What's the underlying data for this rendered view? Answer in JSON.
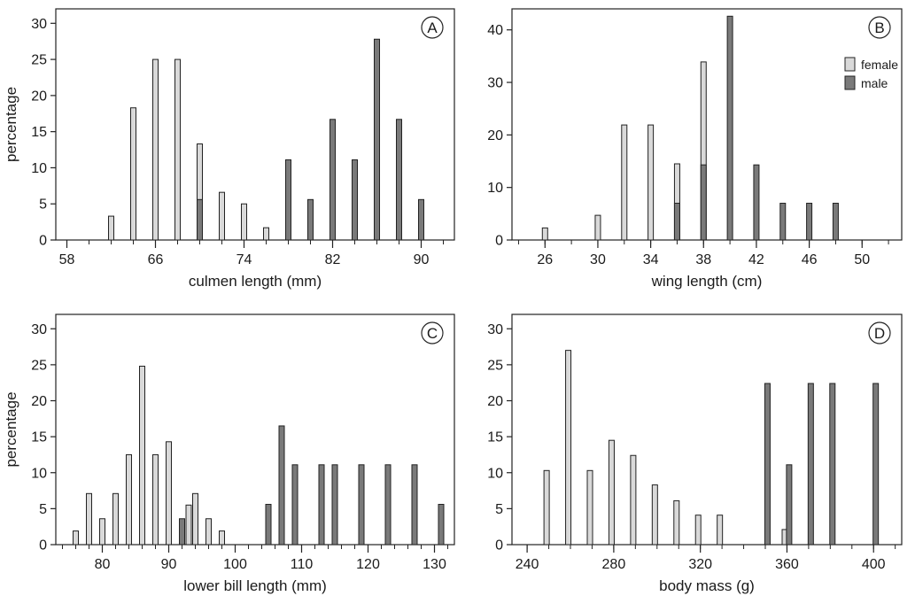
{
  "colors": {
    "female": "#d9d9d9",
    "male": "#7a7a7a",
    "stroke": "#222222"
  },
  "legend": {
    "entries": [
      {
        "label": "female",
        "series": "female"
      },
      {
        "label": "male",
        "series": "male"
      }
    ]
  },
  "chart_data": [
    {
      "type": "bar",
      "panel": "A",
      "xlabel": "culmen length (mm)",
      "ylabel": "percentage",
      "xlim": [
        57,
        93
      ],
      "ylim": [
        0,
        32
      ],
      "xticks": [
        58,
        66,
        74,
        82,
        90
      ],
      "minor_step": 2,
      "yticks": [
        0,
        5,
        10,
        15,
        20,
        25,
        30
      ],
      "series": [
        {
          "name": "female",
          "x": [
            62,
            64,
            66,
            68,
            70,
            72,
            74,
            76,
            82
          ],
          "values": [
            3.3,
            18.3,
            25,
            25,
            13.3,
            6.6,
            5,
            1.7,
            1.7
          ]
        },
        {
          "name": "male",
          "x": [
            70,
            78,
            80,
            82,
            84,
            86,
            88,
            90
          ],
          "values": [
            5.6,
            11.1,
            5.6,
            16.7,
            11.1,
            27.8,
            16.7,
            5.6
          ]
        }
      ]
    },
    {
      "type": "bar",
      "panel": "B",
      "xlabel": "wing length (cm)",
      "ylabel": "",
      "xlim": [
        23.5,
        53
      ],
      "ylim": [
        0,
        44
      ],
      "xticks": [
        26,
        30,
        34,
        38,
        42,
        46,
        50
      ],
      "minor_step": 2,
      "yticks": [
        0,
        10,
        20,
        30,
        40
      ],
      "series": [
        {
          "name": "female",
          "x": [
            26,
            30,
            32,
            34,
            36,
            38
          ],
          "values": [
            2.3,
            4.7,
            21.9,
            21.9,
            14.5,
            33.9
          ]
        },
        {
          "name": "male",
          "x": [
            36,
            38,
            40,
            42,
            44,
            46,
            48
          ],
          "values": [
            7,
            14.3,
            42.6,
            14.3,
            7,
            7,
            7
          ]
        }
      ]
    },
    {
      "type": "bar",
      "panel": "C",
      "xlabel": "lower bill length (mm)",
      "ylabel": "percentage",
      "xlim": [
        73,
        133
      ],
      "ylim": [
        0,
        32
      ],
      "xticks": [
        80,
        90,
        100,
        110,
        120,
        130
      ],
      "minor_step": 2,
      "yticks": [
        0,
        5,
        10,
        15,
        20,
        25,
        30
      ],
      "series": [
        {
          "name": "female",
          "x": [
            76,
            78,
            80,
            82,
            84,
            86,
            88,
            90,
            93,
            94,
            96,
            98
          ],
          "values": [
            1.9,
            7.1,
            3.6,
            7.1,
            12.5,
            24.8,
            12.5,
            14.3,
            5.5,
            7.1,
            3.6,
            1.9
          ]
        },
        {
          "name": "male",
          "x": [
            92,
            105,
            107,
            109,
            113,
            115,
            119,
            123,
            127,
            131
          ],
          "values": [
            3.6,
            5.6,
            16.5,
            11.1,
            11.1,
            11.1,
            11.1,
            11.1,
            11.1,
            5.6
          ]
        }
      ]
    },
    {
      "type": "bar",
      "panel": "D",
      "xlabel": "body mass (g)",
      "ylabel": "",
      "xlim": [
        233,
        413
      ],
      "ylim": [
        0,
        32
      ],
      "xticks": [
        240,
        280,
        320,
        360,
        400
      ],
      "minor_step": 10,
      "yticks": [
        0,
        5,
        10,
        15,
        20,
        25,
        30
      ],
      "series": [
        {
          "name": "female",
          "x": [
            249,
            259,
            269,
            279,
            289,
            299,
            309,
            319,
            329,
            359
          ],
          "values": [
            10.3,
            27,
            10.3,
            14.5,
            12.4,
            8.3,
            6.1,
            4.1,
            4.1,
            2.1
          ]
        },
        {
          "name": "male",
          "x": [
            351,
            361,
            371,
            381,
            401
          ],
          "values": [
            22.4,
            11.1,
            22.4,
            22.4,
            22.4
          ]
        }
      ]
    }
  ]
}
